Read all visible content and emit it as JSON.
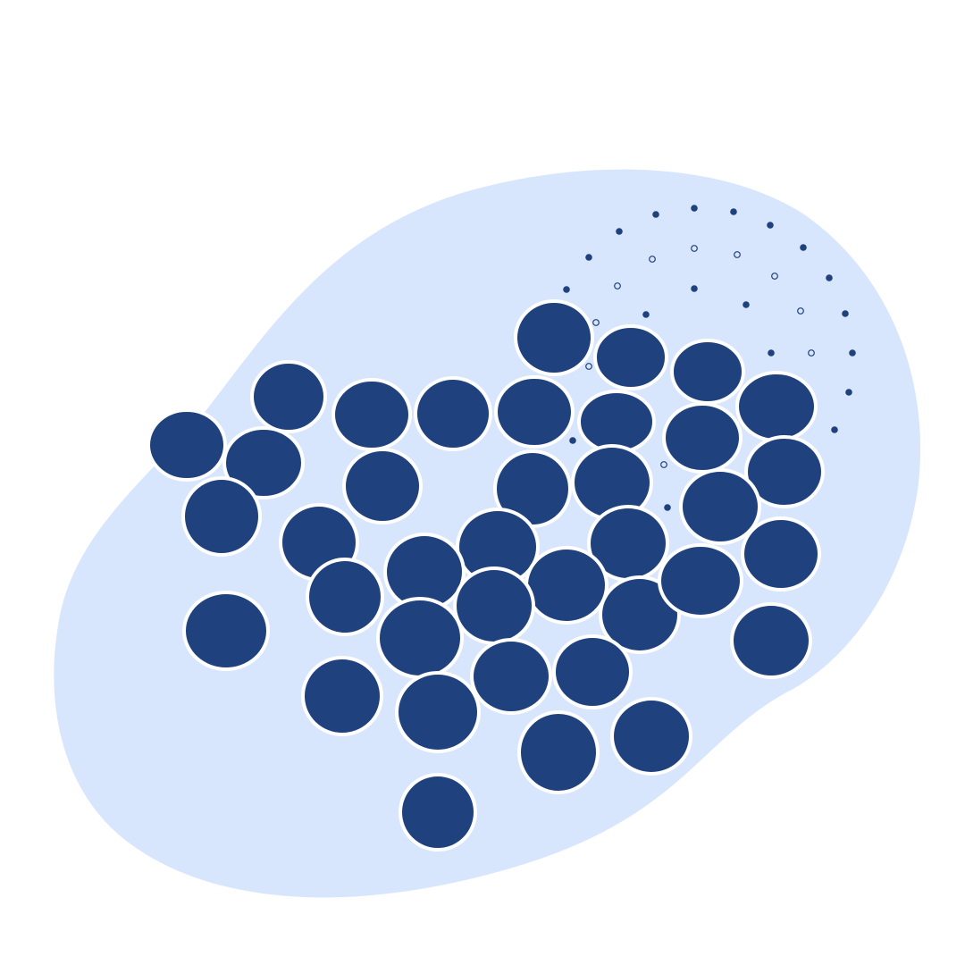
{
  "illustration": {
    "background_color": "#ffffff",
    "blob_color": "#d8e6fd",
    "circle_fill": "#1f417d",
    "circle_stroke": "#ffffff",
    "dot_color": "#1f417d"
  }
}
